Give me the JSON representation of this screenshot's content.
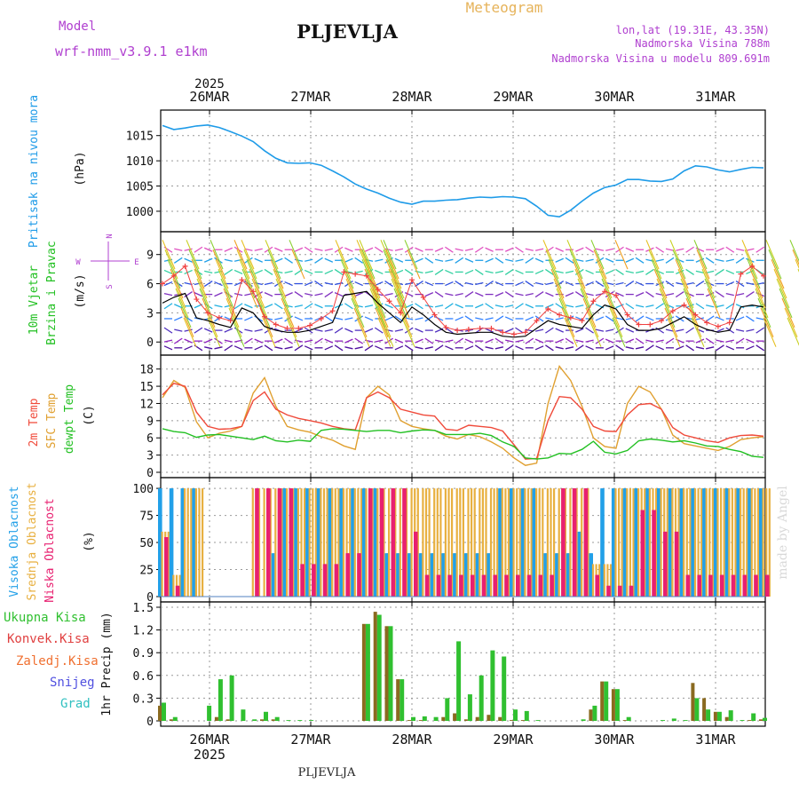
{
  "header": {
    "model_label": "Model",
    "model_name": "wrf-nmm_v3.9.1  e1km",
    "station": "PLJEVLJA",
    "product": "Meteogram",
    "coords": "lon,lat (19.31E, 43.35N)",
    "elevation": "Nadmorska Visina 788m",
    "model_elevation": "Nadmorska Visina u modelu 809.691m"
  },
  "footer": {
    "station": "PLJEVLJA",
    "watermark": "made by Angel"
  },
  "colors": {
    "pressure": "#1e9be8",
    "title_purple": "#b040d0",
    "title_orange": "#e6b35a",
    "temp2m": "#f04a3a",
    "sfc": "#e0a030",
    "dew": "#22c022",
    "high_cloud": "#22a0e8",
    "mid_cloud": "#e8b040",
    "low_cloud": "#e82070",
    "precip_total": "#30c030",
    "precip_conv": "#e04040",
    "precip_frozen": "#f07030",
    "precip_snow": "#5050e0",
    "precip_hail": "#30c0c0",
    "wind_speed": "#000000",
    "gust": "#f04040"
  },
  "chart_data": [
    {
      "type": "line",
      "panel": "pressure",
      "ylabel": [
        "Pritisak na nivou mora",
        "(hPa)"
      ],
      "ylim": [
        997,
        1019
      ],
      "yticks": [
        1000,
        1005,
        1010,
        1015
      ],
      "x_hours_start": 0,
      "x_hours_step": 3,
      "values": [
        1017.0,
        1016.2,
        1016.5,
        1016.9,
        1017.1,
        1016.6,
        1015.8,
        1014.9,
        1013.8,
        1012.0,
        1010.5,
        1009.6,
        1009.5,
        1009.6,
        1009.1,
        1008.0,
        1006.8,
        1005.4,
        1004.4,
        1003.6,
        1002.6,
        1001.8,
        1001.4,
        1002.0,
        1002.0,
        1002.2,
        1002.3,
        1002.6,
        1002.8,
        1002.7,
        1002.9,
        1002.8,
        1002.5,
        1001.0,
        999.2,
        998.9,
        1000.2,
        1002.0,
        1003.6,
        1004.7,
        1005.2,
        1006.3,
        1006.3,
        1006.0,
        1005.9,
        1006.4,
        1008.0,
        1009.0,
        1008.8,
        1008.2,
        1007.8,
        1008.3,
        1008.7,
        1008.6
      ]
    },
    {
      "type": "line",
      "panel": "wind",
      "ylabel": [
        "10m Vjetar",
        "Brzina i Pravac",
        "(m/s)"
      ],
      "compass": {
        "n": "N",
        "s": "S",
        "e": "E",
        "w": "W"
      },
      "ylim": [
        -0.8,
        10.8
      ],
      "yticks": [
        0,
        3,
        6,
        9
      ],
      "series": [
        {
          "name": "speed",
          "values": [
            4.0,
            4.6,
            5.0,
            2.5,
            2.2,
            1.8,
            1.5,
            3.5,
            3.0,
            1.6,
            1.2,
            1.0,
            1.0,
            1.2,
            1.6,
            2.0,
            4.8,
            5.0,
            5.2,
            4.0,
            3.0,
            2.0,
            3.6,
            2.8,
            1.8,
            1.0,
            0.8,
            0.9,
            1.0,
            1.0,
            0.6,
            0.5,
            0.6,
            1.4,
            2.2,
            1.8,
            1.6,
            1.4,
            2.8,
            3.8,
            3.4,
            1.8,
            1.2,
            1.2,
            1.4,
            2.0,
            2.6,
            1.8,
            1.3,
            1.0,
            1.2,
            3.6,
            3.8,
            3.6
          ]
        },
        {
          "name": "gust",
          "values": [
            6.0,
            6.8,
            7.8,
            4.4,
            3.0,
            2.5,
            2.2,
            6.4,
            5.2,
            2.6,
            1.8,
            1.4,
            1.4,
            1.7,
            2.4,
            3.2,
            7.2,
            7.0,
            6.8,
            5.4,
            4.2,
            3.0,
            6.4,
            4.6,
            2.8,
            1.5,
            1.2,
            1.3,
            1.4,
            1.4,
            1.0,
            0.8,
            1.0,
            2.2,
            3.4,
            2.8,
            2.5,
            2.2,
            4.2,
            5.2,
            4.8,
            2.8,
            1.8,
            1.8,
            2.2,
            3.2,
            3.8,
            2.8,
            2.0,
            1.6,
            2.0,
            7.0,
            7.8,
            6.8
          ]
        }
      ]
    },
    {
      "type": "line",
      "panel": "temperature",
      "ylabel": [
        "2m Temp",
        "SFC Temp",
        "dewpt Temp",
        "(C)"
      ],
      "ylim": [
        0,
        19.5
      ],
      "yticks": [
        0,
        3,
        6,
        9,
        12,
        15,
        18
      ],
      "series": [
        {
          "name": "2m Temp",
          "values": [
            13.5,
            15.5,
            15.0,
            10.5,
            8.0,
            7.5,
            7.6,
            8.0,
            12.5,
            14.0,
            11.0,
            10.0,
            9.4,
            9.0,
            8.6,
            8.0,
            7.6,
            7.4,
            13.0,
            14.0,
            13.0,
            11.0,
            10.5,
            10.0,
            9.8,
            7.5,
            7.3,
            8.2,
            8.0,
            7.8,
            7.2,
            4.8,
            2.3,
            2.4,
            9.0,
            13.2,
            13.0,
            11.0,
            8.0,
            7.2,
            7.1,
            10.0,
            11.8,
            12.0,
            11.0,
            7.8,
            6.5,
            6.0,
            5.5,
            5.2,
            6.0,
            6.4,
            6.5,
            6.3
          ]
        },
        {
          "name": "SFC Temp",
          "values": [
            13.0,
            16.0,
            14.8,
            8.8,
            6.0,
            6.8,
            7.2,
            8.0,
            13.8,
            16.5,
            11.5,
            8.0,
            7.4,
            7.0,
            6.2,
            5.6,
            4.6,
            4.0,
            13.0,
            15.0,
            13.5,
            9.0,
            8.0,
            7.6,
            7.3,
            6.3,
            5.8,
            6.6,
            6.2,
            5.3,
            4.2,
            2.5,
            1.2,
            1.6,
            12.0,
            18.5,
            16.0,
            11.5,
            6.0,
            4.5,
            4.2,
            12.0,
            15.0,
            14.0,
            11.0,
            6.5,
            5.0,
            4.6,
            4.2,
            3.8,
            4.5,
            5.7,
            6.0,
            6.2
          ]
        },
        {
          "name": "dewpt Temp",
          "values": [
            7.6,
            7.1,
            6.9,
            6.1,
            6.5,
            6.6,
            6.3,
            6.0,
            5.7,
            6.3,
            5.5,
            5.3,
            5.6,
            5.4,
            7.3,
            7.6,
            7.5,
            7.3,
            7.1,
            7.3,
            7.3,
            6.9,
            7.2,
            7.4,
            7.3,
            6.6,
            6.6,
            6.6,
            6.8,
            6.4,
            5.3,
            4.5,
            2.5,
            2.3,
            2.5,
            3.3,
            3.2,
            4.0,
            5.4,
            3.5,
            3.2,
            3.8,
            5.5,
            5.8,
            5.6,
            5.3,
            5.5,
            5.1,
            4.6,
            4.5,
            4.0,
            3.6,
            2.8,
            2.6
          ]
        }
      ]
    },
    {
      "type": "bar",
      "panel": "clouds",
      "ylabel": [
        "Visoka Oblacnost",
        "Srednja Oblacnost",
        "Niska Oblacnost",
        "(%)"
      ],
      "ylim": [
        0,
        105
      ],
      "yticks": [
        0,
        25,
        50,
        75,
        100
      ],
      "series": [
        {
          "name": "Visoka Oblacnost",
          "values": [
            100,
            100,
            100,
            100,
            0,
            0,
            0,
            0,
            0,
            0,
            40,
            100,
            100,
            100,
            100,
            100,
            100,
            100,
            100,
            100,
            40,
            40,
            40,
            40,
            40,
            40,
            40,
            40,
            40,
            40,
            100,
            100,
            100,
            100,
            40,
            40,
            40,
            60,
            40,
            100,
            100,
            100,
            100,
            100,
            100,
            100,
            100,
            100,
            100,
            100,
            100,
            100,
            100,
            100
          ]
        },
        {
          "name": "Srednja Oblacnost",
          "values": [
            60,
            20,
            100,
            100,
            0,
            0,
            0,
            0,
            100,
            100,
            100,
            100,
            100,
            100,
            100,
            100,
            100,
            100,
            100,
            100,
            100,
            100,
            100,
            100,
            100,
            100,
            100,
            100,
            100,
            100,
            100,
            100,
            100,
            100,
            100,
            100,
            100,
            100,
            30,
            30,
            100,
            100,
            100,
            100,
            100,
            100,
            100,
            100,
            100,
            100,
            100,
            100,
            100,
            100
          ]
        },
        {
          "name": "Niska Oblacnost",
          "values": [
            55,
            10,
            0,
            0,
            0,
            0,
            0,
            0,
            100,
            100,
            100,
            100,
            30,
            30,
            30,
            30,
            40,
            40,
            100,
            100,
            100,
            100,
            60,
            20,
            20,
            20,
            20,
            20,
            20,
            20,
            20,
            20,
            20,
            20,
            20,
            100,
            100,
            100,
            20,
            10,
            10,
            10,
            80,
            80,
            60,
            60,
            20,
            20,
            20,
            20,
            20,
            20,
            20,
            20
          ]
        }
      ]
    },
    {
      "type": "bar",
      "panel": "precipitation",
      "ylabel": [
        "1hr Precip (mm)"
      ],
      "legend": [
        "Ukupna Kisa",
        "Konvek.Kisa",
        "Zaledj.Kisa",
        "Snijeg",
        "Grad"
      ],
      "ylim": [
        0,
        1.5
      ],
      "yticks": [
        0,
        0.3,
        0.6,
        0.9,
        1.2,
        1.5
      ],
      "series": [
        {
          "name": "Ukupna Kisa",
          "values": [
            0.24,
            0.05,
            0,
            0,
            0.2,
            0.55,
            0.6,
            0.15,
            0.02,
            0.12,
            0.05,
            0.01,
            0.01,
            0.01,
            0,
            0,
            0,
            0,
            1.28,
            1.4,
            1.25,
            0.55,
            0.05,
            0.06,
            0.05,
            0.3,
            1.05,
            0.35,
            0.6,
            0.93,
            0.85,
            0.15,
            0.13,
            0.01,
            0,
            0,
            0,
            0.02,
            0.2,
            0.52,
            0.42,
            0.05,
            0,
            0,
            0.01,
            0.03,
            0.01,
            0.3,
            0.15,
            0.12,
            0.14,
            0.01,
            0.1,
            0.04
          ]
        },
        {
          "name": "Konvek.Kisa",
          "values": [
            0.2,
            0.02,
            0,
            0,
            0,
            0.05,
            0.02,
            0,
            0,
            0.02,
            0.02,
            0,
            0,
            0,
            0,
            0,
            0,
            0,
            1.28,
            1.44,
            1.25,
            0.55,
            0.01,
            0.01,
            0,
            0.05,
            0.1,
            0.02,
            0.05,
            0.08,
            0.05,
            0.01,
            0.01,
            0,
            0,
            0,
            0,
            0,
            0.15,
            0.52,
            0.42,
            0.01,
            0,
            0,
            0,
            0,
            0,
            0.5,
            0.3,
            0.12,
            0.05,
            0,
            0.01,
            0.02
          ]
        }
      ]
    }
  ],
  "dates": {
    "year": "2025",
    "days": [
      "26MAR",
      "27MAR",
      "28MAR",
      "29MAR",
      "30MAR",
      "31MAR"
    ]
  }
}
